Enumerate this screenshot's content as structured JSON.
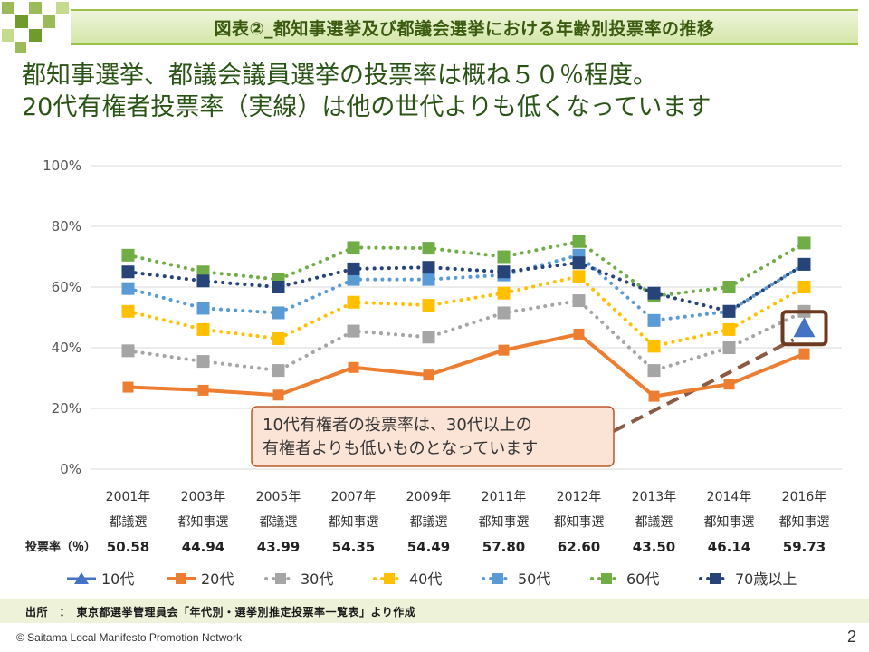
{
  "title": "図表②_都知事選挙及び都議会選挙における年齢別投票率の推移",
  "headline": {
    "line1": "都知事選挙、都議会議員選挙の投票率は概ね５０％程度。",
    "line2": "20代有権者投票率（実線）は他の世代よりも低くなっています"
  },
  "colors": {
    "title_bg": "#d9eab3",
    "title_text": "#3a5a10",
    "headline": "#2a5416"
  },
  "chart_data": {
    "type": "line",
    "categories": [
      [
        "2001年",
        "都議選"
      ],
      [
        "2003年",
        "都知事選"
      ],
      [
        "2005年",
        "都議選"
      ],
      [
        "2007年",
        "都知事選"
      ],
      [
        "2009年",
        "都議選"
      ],
      [
        "2011年",
        "都知事選"
      ],
      [
        "2012年",
        "都知事選"
      ],
      [
        "2013年",
        "都議選"
      ],
      [
        "2014年",
        "都知事選"
      ],
      [
        "2016年",
        "都知事選"
      ]
    ],
    "ylim": [
      0,
      100
    ],
    "yticks": [
      0,
      20,
      40,
      60,
      80,
      100
    ],
    "ytick_labels": [
      "0%",
      "20%",
      "40%",
      "60%",
      "80%",
      "100%"
    ],
    "turnout_label": "投票率（％）",
    "turnout": [
      "50.58",
      "44.94",
      "43.99",
      "54.35",
      "54.49",
      "57.80",
      "62.60",
      "43.50",
      "46.14",
      "59.73"
    ],
    "series": [
      {
        "name": "10代",
        "color": "#4472c4",
        "style": "triangle",
        "values": [
          null,
          null,
          null,
          null,
          null,
          null,
          null,
          null,
          null,
          46.8
        ]
      },
      {
        "name": "20代",
        "color": "#ed7d31",
        "style": "solid",
        "values": [
          27.0,
          26.0,
          24.4,
          33.5,
          31.0,
          39.2,
          44.5,
          24.0,
          28.0,
          38.0
        ]
      },
      {
        "name": "30代",
        "color": "#a5a5a5",
        "style": "dotted",
        "values": [
          39.0,
          35.5,
          32.5,
          45.5,
          43.5,
          51.5,
          55.5,
          32.5,
          40.0,
          52.0
        ]
      },
      {
        "name": "40代",
        "color": "#ffc000",
        "style": "dotted",
        "values": [
          52.0,
          46.0,
          43.0,
          55.0,
          54.0,
          58.0,
          63.5,
          40.5,
          46.0,
          60.0
        ]
      },
      {
        "name": "50代",
        "color": "#5b9bd5",
        "style": "dotted",
        "values": [
          59.5,
          53.0,
          51.5,
          62.5,
          62.5,
          64.0,
          70.5,
          49.0,
          52.0,
          67.5
        ]
      },
      {
        "name": "60代",
        "color": "#70ad47",
        "style": "dotted",
        "values": [
          70.5,
          65.0,
          62.5,
          73.0,
          72.8,
          70.0,
          75.0,
          57.0,
          60.0,
          74.5
        ]
      },
      {
        "name": "70歳以上",
        "color": "#264478",
        "style": "dotted",
        "values": [
          65.0,
          62.0,
          60.0,
          66.0,
          66.5,
          65.0,
          68.0,
          58.0,
          52.0,
          67.5
        ]
      }
    ],
    "annotation": {
      "line1": "10代有権者の投票率は、30代以上の",
      "line2": "有権者よりも低いものとなっています"
    }
  },
  "source": "出所　：　東京都選挙管理員会「年代別・選挙別推定投票率一覧表」より作成",
  "footer": "© Saitama Local Manifesto Promotion Network",
  "page_number": "2"
}
